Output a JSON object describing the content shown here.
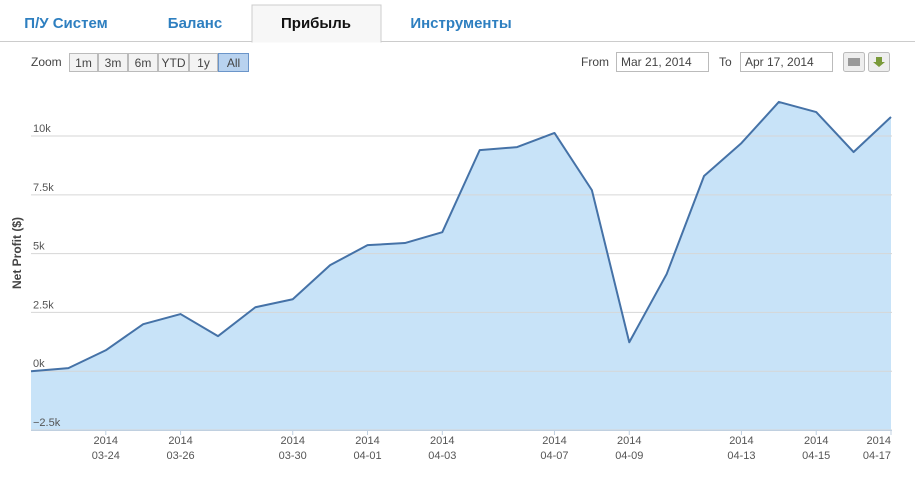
{
  "tabs": [
    "П/У Систем",
    "Баланс",
    "Прибыль",
    "Инструменты"
  ],
  "active_tab": 2,
  "toolbar": {
    "zoom_label": "Zoom",
    "zoom_buttons": [
      "1m",
      "3m",
      "6m",
      "YTD",
      "1y",
      "All"
    ],
    "active_zoom": 5,
    "from_label": "From",
    "from_value": "Mar 21, 2014",
    "to_label": "To",
    "to_value": "Apr 17, 2014"
  },
  "chart_data": {
    "type": "area",
    "y_label": "Net Profit ($)",
    "color": "#4572a7",
    "fill": "#c8e3f8",
    "categories": [
      null,
      null,
      {
        "year": "2014",
        "day": "03-24"
      },
      null,
      {
        "year": "2014",
        "day": "03-26"
      },
      null,
      null,
      {
        "year": "2014",
        "day": "03-30"
      },
      null,
      {
        "year": "2014",
        "day": "04-01"
      },
      null,
      {
        "year": "2014",
        "day": "04-03"
      },
      null,
      null,
      {
        "year": "2014",
        "day": "04-07"
      },
      null,
      {
        "year": "2014",
        "day": "04-09"
      },
      null,
      null,
      {
        "year": "2014",
        "day": "04-13"
      },
      null,
      {
        "year": "2014",
        "day": "04-15"
      },
      null,
      {
        "year": "2014",
        "day": "04-17"
      }
    ],
    "values": [
      0,
      130,
      890,
      2000,
      2430,
      1490,
      2720,
      3060,
      4510,
      5360,
      5450,
      5910,
      9400,
      9530,
      10130,
      7700,
      1230,
      4130,
      8300,
      9700,
      11450,
      11020,
      9320,
      10810
    ],
    "ylim": [
      -2500,
      12000
    ],
    "yticks": [
      {
        "value": -2500,
        "label": "−2.5k"
      },
      {
        "value": 0,
        "label": "0k"
      },
      {
        "value": 2500,
        "label": "2.5k"
      },
      {
        "value": 5000,
        "label": "5k"
      },
      {
        "value": 7500,
        "label": "7.5k"
      },
      {
        "value": 10000,
        "label": "10k"
      }
    ],
    "grid": true
  }
}
